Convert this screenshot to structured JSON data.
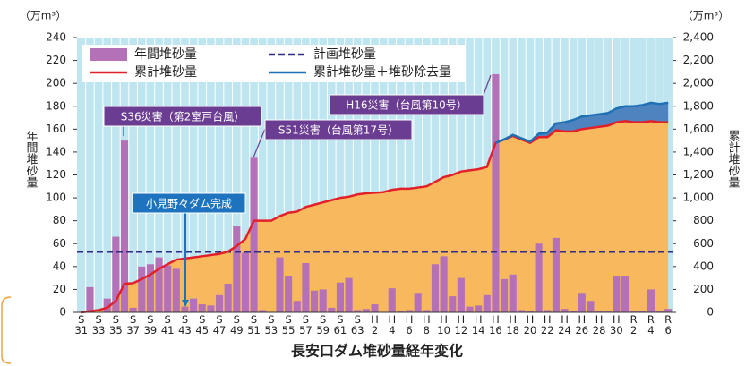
{
  "chart_data": {
    "type": "combo",
    "title": "長安口ダム堆砂量経年変化",
    "y_unit": "（万m³）",
    "y2_unit": "（万m³）",
    "ylabel": "年間堆砂量",
    "y2label": "累計堆砂量",
    "categories": [
      "S\n31",
      null,
      "S\n33",
      null,
      "S\n35",
      null,
      "S\n37",
      null,
      "S\n39",
      null,
      "S\n41",
      null,
      "S\n43",
      null,
      "S\n45",
      null,
      "S\n47",
      null,
      "S\n49",
      null,
      "S\n51",
      null,
      "S\n53",
      null,
      "S\n55",
      null,
      "S\n57",
      null,
      "S\n59",
      null,
      "S\n61",
      null,
      "S\n63",
      null,
      "H\n2",
      null,
      "H\n4",
      null,
      "H\n6",
      null,
      "H\n8",
      null,
      "H\n10",
      null,
      "H\n12",
      null,
      "H\n14",
      null,
      "H\n16",
      null,
      "H\n18",
      null,
      "H\n20",
      null,
      "H\n22",
      null,
      "H\n24",
      null,
      "H\n26",
      null,
      "H\n28",
      null,
      "H\n30",
      null,
      "R\n2",
      null,
      "R\n4",
      null,
      "R\n6"
    ],
    "series": [
      {
        "name": "年間堆砂量",
        "kind": "bar",
        "color": "#b571b8",
        "axis": "y",
        "values": [
          0,
          22,
          0,
          12,
          66,
          150,
          4,
          40,
          42,
          48,
          41,
          38,
          5,
          12,
          7,
          6,
          15,
          25,
          75,
          52,
          135,
          2,
          0,
          48,
          32,
          10,
          43,
          19,
          20,
          4,
          26,
          30,
          2,
          3,
          7,
          0,
          21,
          1,
          2,
          17,
          2,
          42,
          49,
          14,
          30,
          5,
          6,
          15,
          208,
          29,
          33,
          2,
          1,
          60,
          2,
          65,
          3,
          1,
          17,
          10,
          1,
          1,
          32,
          32,
          1,
          1,
          20,
          1,
          3
        ]
      },
      {
        "name": "計画堆砂量",
        "kind": "hline",
        "color": "#2e2a86",
        "axis": "y",
        "value": 53
      },
      {
        "name": "累計堆砂量",
        "kind": "line",
        "color": "#e3202a",
        "fill": "#f8b95e",
        "axis": "y2",
        "values": [
          0,
          10,
          20,
          40,
          100,
          250,
          255,
          290,
          330,
          380,
          420,
          460,
          470,
          480,
          490,
          500,
          510,
          530,
          580,
          640,
          800,
          800,
          800,
          840,
          870,
          880,
          920,
          940,
          960,
          980,
          1000,
          1010,
          1030,
          1040,
          1045,
          1050,
          1070,
          1080,
          1080,
          1090,
          1100,
          1140,
          1180,
          1200,
          1230,
          1240,
          1250,
          1270,
          1480,
          1510,
          1540,
          1510,
          1480,
          1530,
          1530,
          1590,
          1580,
          1580,
          1600,
          1610,
          1620,
          1630,
          1660,
          1670,
          1660,
          1660,
          1670,
          1660,
          1660
        ]
      },
      {
        "name": "累計堆砂量＋堆砂除去量",
        "kind": "line",
        "color": "#1f6fb5",
        "fill": "#4d84c0",
        "axis": "y2",
        "values": [
          null,
          null,
          null,
          null,
          null,
          null,
          null,
          null,
          null,
          null,
          null,
          null,
          null,
          null,
          null,
          null,
          null,
          null,
          null,
          null,
          null,
          null,
          null,
          null,
          null,
          null,
          null,
          null,
          null,
          null,
          null,
          null,
          null,
          null,
          null,
          null,
          null,
          null,
          null,
          null,
          null,
          null,
          null,
          null,
          null,
          null,
          null,
          null,
          1480,
          1510,
          1550,
          1520,
          1490,
          1560,
          1570,
          1650,
          1660,
          1680,
          1710,
          1720,
          1730,
          1740,
          1780,
          1800,
          1800,
          1810,
          1830,
          1820,
          1830
        ]
      }
    ],
    "ylim": [
      0,
      240
    ],
    "yticks": [
      0,
      20,
      40,
      60,
      80,
      100,
      120,
      140,
      160,
      180,
      200,
      220,
      240
    ],
    "y2lim": [
      0,
      2400
    ],
    "y2ticks": [
      0,
      200,
      400,
      600,
      800,
      {
        "value": 1000,
        "label": "1,000"
      },
      {
        "value": 1200,
        "label": "1,200"
      },
      {
        "value": 1400,
        "label": "1,400"
      },
      {
        "value": 1600,
        "label": "1,600"
      },
      {
        "value": 1800,
        "label": "1,800"
      },
      {
        "value": 2000,
        "label": "2,000"
      },
      {
        "value": 2200,
        "label": "2,200"
      },
      {
        "value": 2400,
        "label": "2,400"
      }
    ],
    "background": "#bfe6f0",
    "legend": "top-left",
    "annotations": [
      {
        "text": "S36災害（第2室戸台風）",
        "color": "#6a3d92"
      },
      {
        "text": "S51災害（台風第17号）",
        "color": "#6a3d92"
      },
      {
        "text": "H16災害（台風第10号）",
        "color": "#6a3d92"
      },
      {
        "text": "小見野々ダム完成",
        "color": "#1e73be"
      }
    ]
  }
}
